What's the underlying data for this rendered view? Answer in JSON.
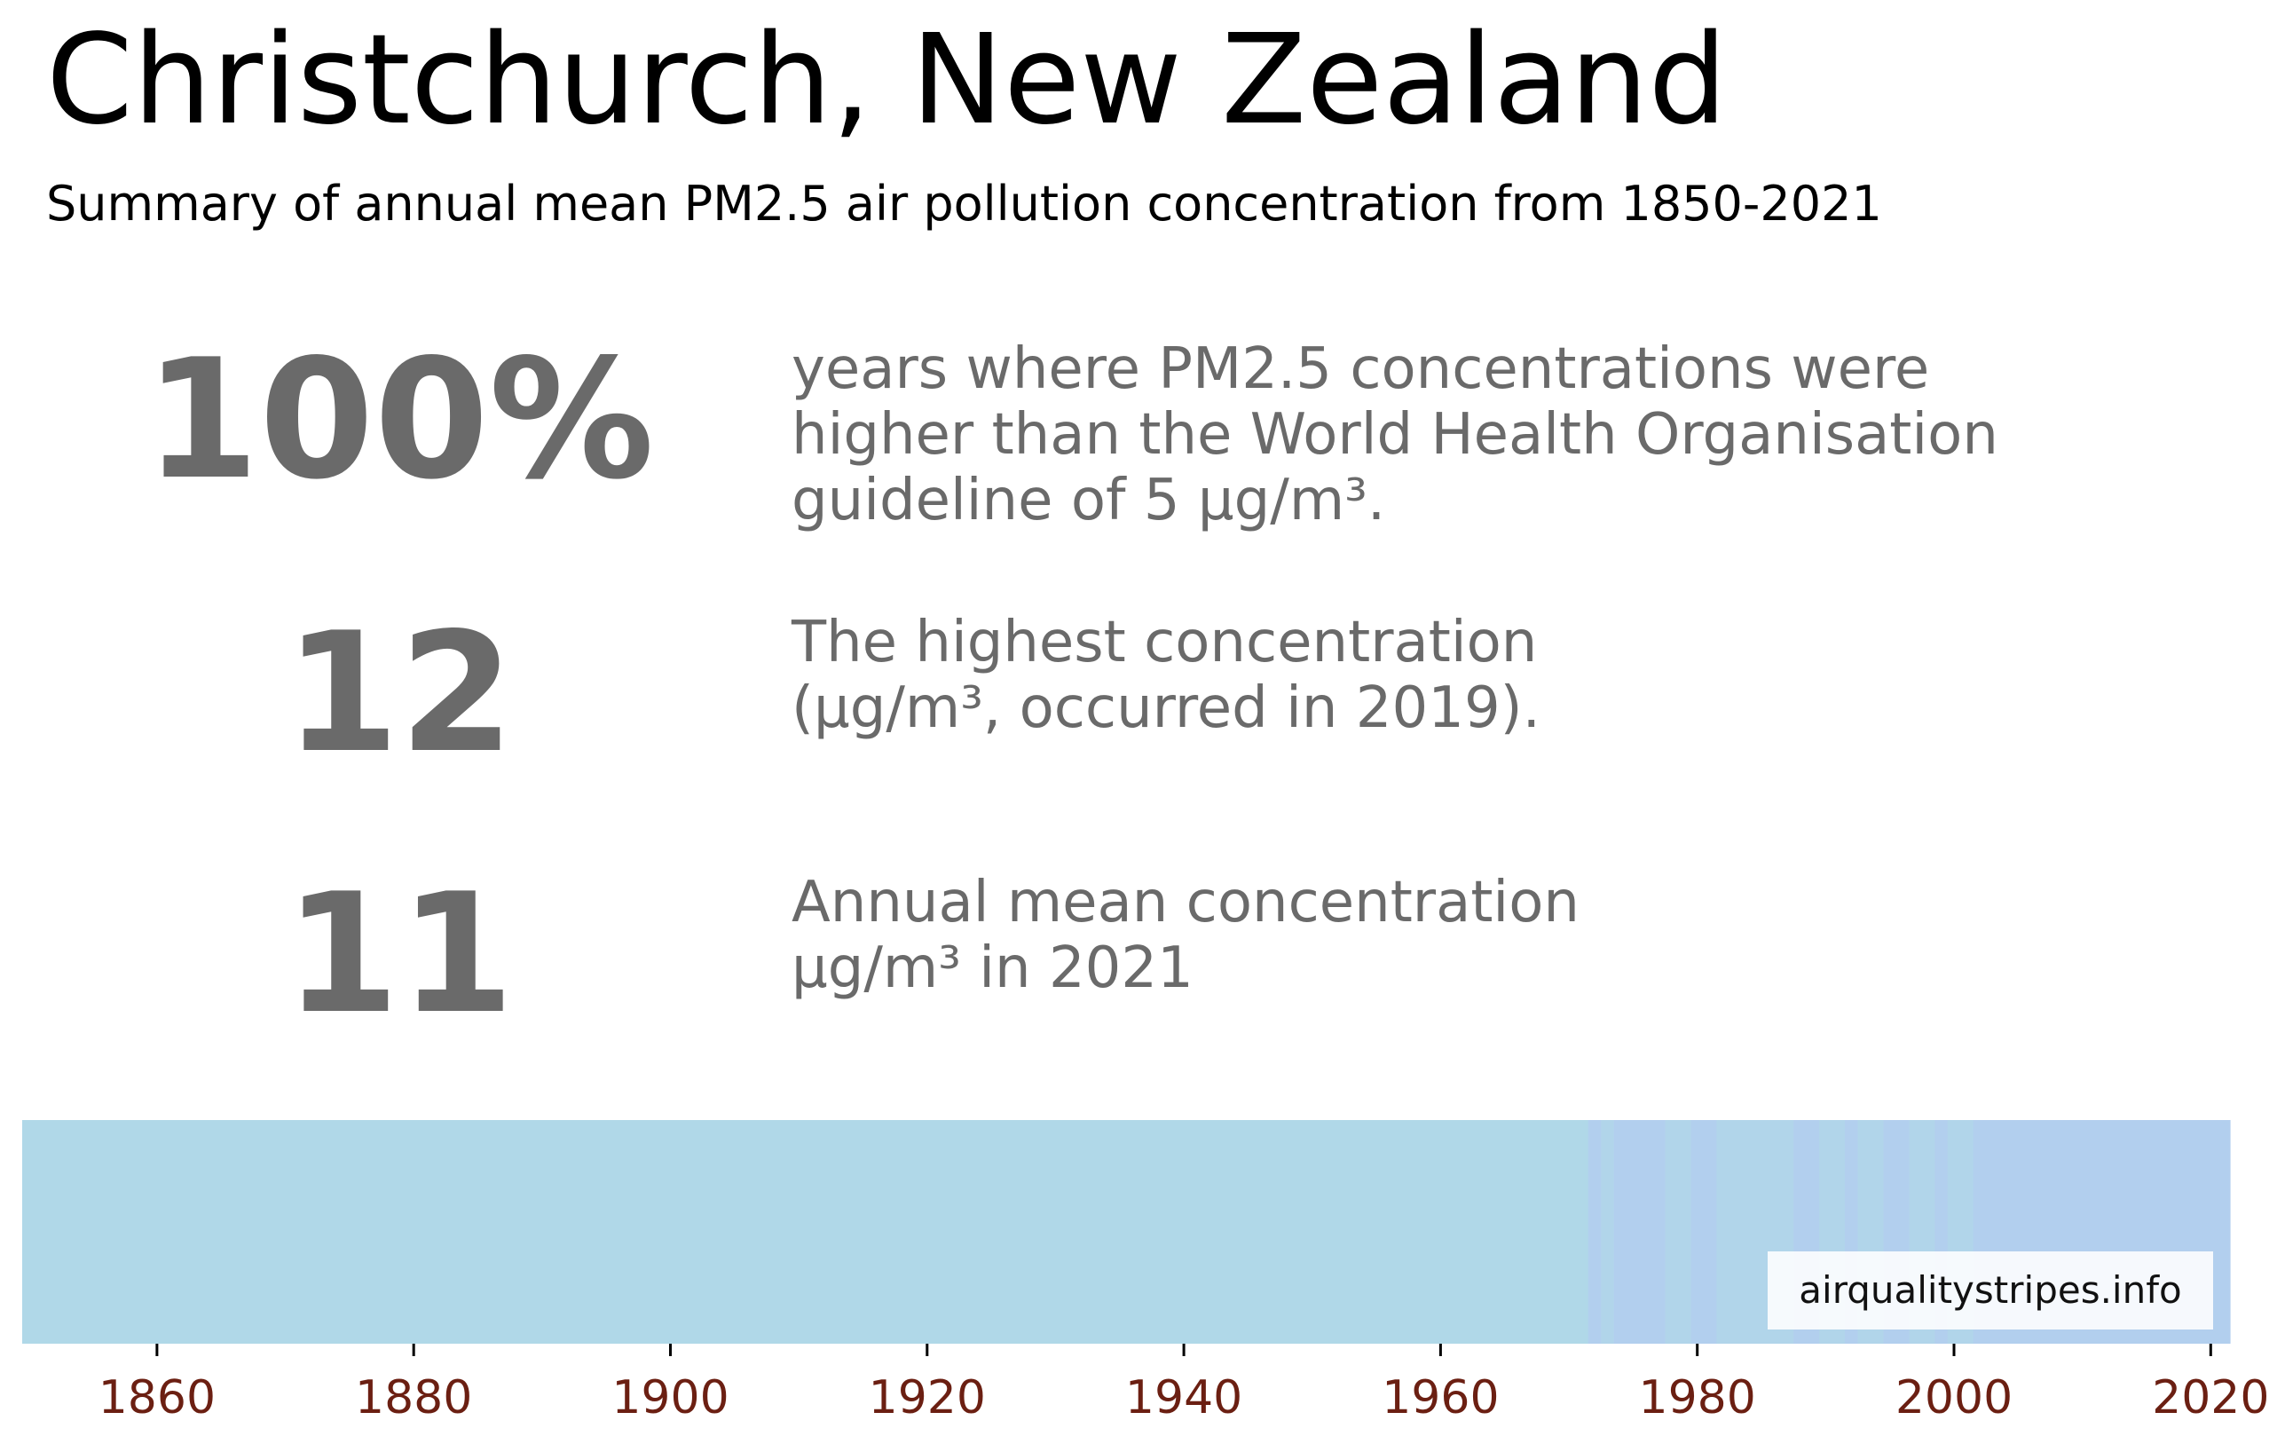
{
  "header": {
    "title": "Christchurch, New Zealand",
    "subtitle": "Summary of annual mean PM2.5 air pollution concentration from 1850-2021"
  },
  "stats": [
    {
      "value": "100%",
      "description": [
        "years where PM2.5 concentrations were",
        "higher than the World Health Organisation",
        "guideline of 5 µg/m³."
      ]
    },
    {
      "value": "12",
      "description": [
        "The highest concentration",
        "(µg/m³, occurred in 2019)."
      ]
    },
    {
      "value": "11",
      "description": [
        "Annual mean concentration",
        "µg/m³ in 2021"
      ]
    }
  ],
  "watermark": "airqualitystripes.info",
  "colors": {
    "stat_text": "#6a6a6a",
    "tick_text": "#6b1f12",
    "stripe_light": "#b0d8e8",
    "stripe_mid": "#b1d5ea",
    "stripe_dark": "#b2cfee"
  },
  "chart_data": {
    "type": "heatmap",
    "x_range": [
      1850,
      2021
    ],
    "x_ticks": [
      1860,
      1880,
      1900,
      1920,
      1940,
      1960,
      1980,
      2000,
      2020
    ],
    "segments": [
      {
        "from": 1850,
        "to": 1971,
        "color": "#b0d8e8"
      },
      {
        "from": 1972,
        "to": 1972,
        "color": "#b2cfee"
      },
      {
        "from": 1973,
        "to": 1973,
        "color": "#b1d5ea"
      },
      {
        "from": 1974,
        "to": 1977,
        "color": "#b2cfee"
      },
      {
        "from": 1978,
        "to": 1979,
        "color": "#b1d5ea"
      },
      {
        "from": 1980,
        "to": 1981,
        "color": "#b2cfee"
      },
      {
        "from": 1982,
        "to": 1987,
        "color": "#b1d5ea"
      },
      {
        "from": 1988,
        "to": 1989,
        "color": "#b2cfee"
      },
      {
        "from": 1990,
        "to": 1991,
        "color": "#b1d5ea"
      },
      {
        "from": 1992,
        "to": 1992,
        "color": "#b2cfee"
      },
      {
        "from": 1993,
        "to": 1994,
        "color": "#b1d5ea"
      },
      {
        "from": 1995,
        "to": 1996,
        "color": "#b2cfee"
      },
      {
        "from": 1997,
        "to": 1998,
        "color": "#b1d5ea"
      },
      {
        "from": 1999,
        "to": 1999,
        "color": "#b2cfee"
      },
      {
        "from": 2000,
        "to": 2001,
        "color": "#b1d5ea"
      },
      {
        "from": 2002,
        "to": 2021,
        "color": "#b2cfee"
      }
    ]
  }
}
